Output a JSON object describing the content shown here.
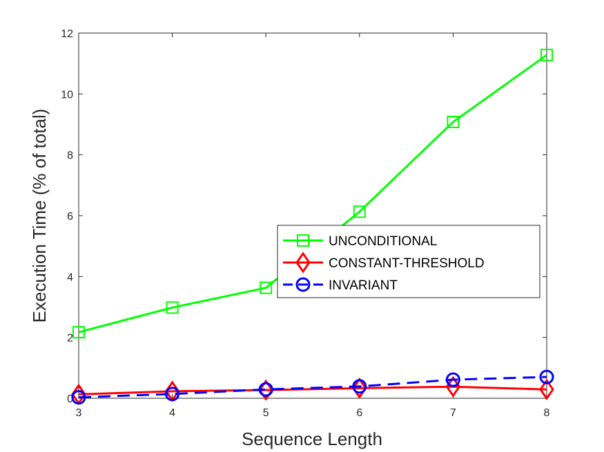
{
  "chart_data": {
    "type": "line",
    "xlabel": "Sequence Length",
    "ylabel": "Execution Time (% of total)",
    "xlim": [
      3,
      8
    ],
    "ylim": [
      0,
      12
    ],
    "xticks": [
      "3",
      "4",
      "5",
      "6",
      "7",
      "8"
    ],
    "yticks": [
      "0",
      "2",
      "4",
      "6",
      "8",
      "10",
      "12"
    ],
    "grid": false,
    "legend_position": "center-right",
    "x": [
      3,
      4,
      5,
      6,
      7,
      8
    ],
    "series": [
      {
        "name": "UNCONDITIONAL",
        "values": [
          2.17,
          2.98,
          3.63,
          6.13,
          9.08,
          11.28
        ],
        "color": "#00ff00",
        "marker": "square",
        "line_style": "solid"
      },
      {
        "name": "CONSTANT-THRESHOLD",
        "values": [
          0.13,
          0.23,
          0.27,
          0.33,
          0.38,
          0.29
        ],
        "color": "#ff0000",
        "marker": "diamond",
        "line_style": "solid"
      },
      {
        "name": "INVARIANT",
        "values": [
          0.03,
          0.14,
          0.29,
          0.39,
          0.61,
          0.7
        ],
        "color": "#0000ff",
        "marker": "circle",
        "line_style": "dashed"
      }
    ]
  }
}
